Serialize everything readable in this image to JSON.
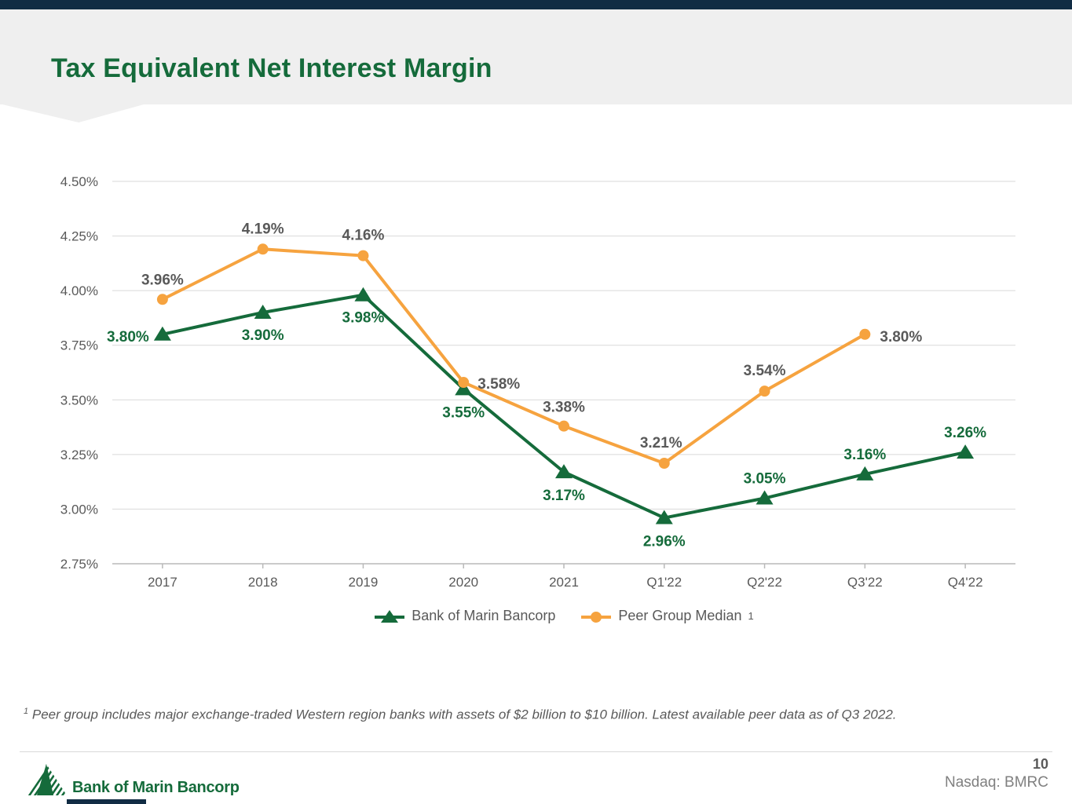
{
  "header": {
    "title": "Tax Equivalent Net Interest Margin"
  },
  "colors": {
    "navy_bar": "#112c44",
    "header_band": "#efefef",
    "title_green": "#156b3b",
    "bmrc_green": "#156b3b",
    "peer_orange": "#f6a33f",
    "axis_gray": "#595959",
    "gridline": "#d9d9d9"
  },
  "chart_data": {
    "type": "line",
    "title": "Tax Equivalent Net Interest Margin",
    "categories": [
      "2017",
      "2018",
      "2019",
      "2020",
      "2021",
      "Q1'22",
      "Q2'22",
      "Q3'22",
      "Q4'22"
    ],
    "y_ticks": [
      "4.50%",
      "4.25%",
      "4.00%",
      "3.75%",
      "3.50%",
      "3.25%",
      "3.00%",
      "2.75%"
    ],
    "ylim": [
      2.75,
      4.5
    ],
    "grid": true,
    "legend_position": "bottom",
    "series": [
      {
        "name": "Bank of Marin Bancorp",
        "color": "#156b3b",
        "label_color": "#156b3b",
        "marker": "triangle",
        "values": [
          3.8,
          3.9,
          3.98,
          3.55,
          3.17,
          2.96,
          3.05,
          3.16,
          3.26
        ],
        "labels": [
          "3.80%",
          "3.90%",
          "3.98%",
          "3.55%",
          "3.17%",
          "2.96%",
          "3.05%",
          "3.16%",
          "3.26%"
        ],
        "label_offsets": [
          [
            -44,
            2
          ],
          [
            0,
            28
          ],
          [
            0,
            28
          ],
          [
            0,
            29
          ],
          [
            0,
            29
          ],
          [
            0,
            29
          ],
          [
            0,
            -26
          ],
          [
            0,
            -26
          ],
          [
            0,
            -26
          ]
        ]
      },
      {
        "name": "Peer Group Median",
        "color": "#f6a33f",
        "label_color": "#595959",
        "marker": "circle",
        "values": [
          3.96,
          4.19,
          4.16,
          3.58,
          3.38,
          3.21,
          3.54,
          3.8
        ],
        "labels": [
          "3.96%",
          "4.19%",
          "4.16%",
          "3.58%",
          "3.38%",
          "3.21%",
          "3.54%",
          "3.80%"
        ],
        "label_offsets": [
          [
            0,
            -26
          ],
          [
            0,
            -27
          ],
          [
            0,
            -27
          ],
          [
            45,
            1
          ],
          [
            0,
            -25
          ],
          [
            -4,
            -27
          ],
          [
            0,
            -27
          ],
          [
            46,
            2
          ]
        ]
      }
    ],
    "legend": [
      {
        "label": "Bank of Marin Bancorp",
        "superscript": ""
      },
      {
        "label": "Peer Group Median",
        "superscript": "1"
      }
    ]
  },
  "footnote": {
    "superscript": "1",
    "text": "Peer group includes major exchange-traded Western region banks with assets of $2 billion to $10 billion. Latest available peer data as of Q3 2022."
  },
  "footer": {
    "logo_text": "Bank of Marin Bancorp",
    "page_number": "10",
    "ticker": "Nasdaq: BMRC"
  }
}
